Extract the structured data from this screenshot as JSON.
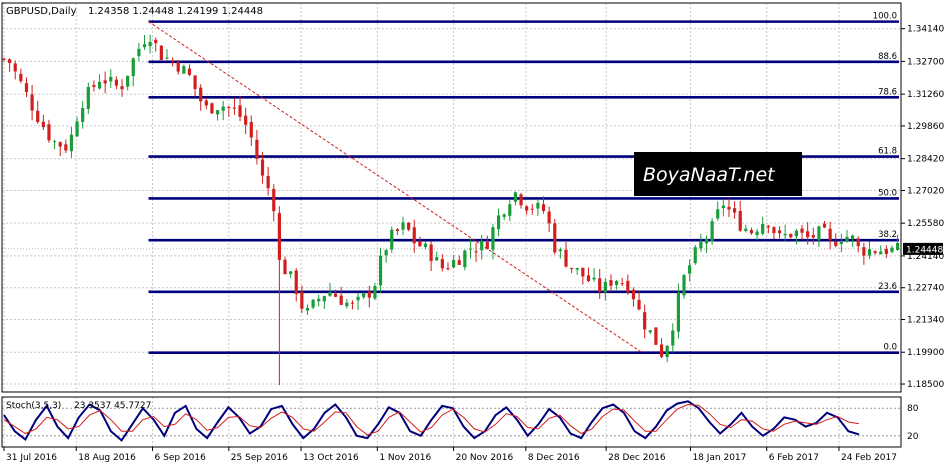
{
  "header": {
    "symbol": "GBPUSD,Daily",
    "ohlc": "1.24358 1.24448 1.24199 1.24448"
  },
  "price_tag": "1.24448",
  "watermark": "BoyaNaaT.net",
  "osc_header": {
    "name": "Stoch(3,5,3)",
    "values": "23.3537 45.7727"
  },
  "colors": {
    "bull": "#1a9c3a",
    "bear": "#d11f1f",
    "fib": "#00007d",
    "trend": "#d11f1f",
    "grid": "#c8c8c8",
    "osc_main": "#00007d",
    "osc_signal": "#d11f1f",
    "tag_bg": "#000000",
    "logo_bg": "#000000"
  },
  "chart_data": [
    {
      "type": "candlestick",
      "title": "GBPUSD,Daily",
      "ylim": [
        1.1815,
        1.3527
      ],
      "y_ticks": [
        "1.34140",
        "1.32700",
        "1.31260",
        "1.29860",
        "1.28420",
        "1.27020",
        "1.25580",
        "1.24140",
        "1.22740",
        "1.21340",
        "1.19900",
        "1.18500"
      ],
      "x_ticks": [
        "31 Jul 2016",
        "18 Aug 2016",
        "6 Sep 2016",
        "25 Sep 2016",
        "13 Oct 2016",
        "1 Nov 2016",
        "20 Nov 2016",
        "8 Dec 2016",
        "28 Dec 2016",
        "18 Jan 2017",
        "6 Feb 2017",
        "24 Feb 2017"
      ],
      "grid": true,
      "fibonacci": [
        {
          "label": "100.0",
          "price": 1.3445
        },
        {
          "label": "88.6",
          "price": 1.3268
        },
        {
          "label": "78.6",
          "price": 1.3112
        },
        {
          "label": "61.8",
          "price": 1.2851
        },
        {
          "label": "50.0",
          "price": 1.2667
        },
        {
          "label": "38.2",
          "price": 1.2483
        },
        {
          "label": "23.6",
          "price": 1.2256
        },
        {
          "label": "0.0",
          "price": 1.1988
        }
      ],
      "trendline": {
        "from_date": "5 Sep 2016",
        "from_price": 1.3445,
        "to_date": "6 Jan 2017",
        "to_price": 1.1988
      },
      "keypoints": [
        [
          "2016-08-01",
          1.328
        ],
        [
          "2016-08-04",
          1.318
        ],
        [
          "2016-08-08",
          1.304
        ],
        [
          "2016-08-12",
          1.292
        ],
        [
          "2016-08-16",
          1.289
        ],
        [
          "2016-08-19",
          1.308
        ],
        [
          "2016-08-24",
          1.32
        ],
        [
          "2016-08-29",
          1.315
        ],
        [
          "2016-09-02",
          1.331
        ],
        [
          "2016-09-05",
          1.34
        ],
        [
          "2016-09-08",
          1.33
        ],
        [
          "2016-09-12",
          1.326
        ],
        [
          "2016-09-15",
          1.321
        ],
        [
          "2016-09-19",
          1.306
        ],
        [
          "2016-09-23",
          1.308
        ],
        [
          "2016-09-27",
          1.305
        ],
        [
          "2016-09-30",
          1.297
        ],
        [
          "2016-10-04",
          1.272
        ],
        [
          "2016-10-06",
          1.27
        ],
        [
          "2016-10-07",
          1.24
        ],
        [
          "2016-10-10",
          1.233
        ],
        [
          "2016-10-12",
          1.226
        ],
        [
          "2016-10-14",
          1.215
        ],
        [
          "2016-10-18",
          1.224
        ],
        [
          "2016-10-20",
          1.226
        ],
        [
          "2016-10-24",
          1.221
        ],
        [
          "2016-10-26",
          1.219
        ],
        [
          "2016-10-31",
          1.227
        ],
        [
          "2016-11-02",
          1.24
        ],
        [
          "2016-11-04",
          1.249
        ],
        [
          "2016-11-08",
          1.255
        ],
        [
          "2016-11-10",
          1.248
        ],
        [
          "2016-11-14",
          1.243
        ],
        [
          "2016-11-17",
          1.236
        ],
        [
          "2016-11-21",
          1.24
        ],
        [
          "2016-11-24",
          1.245
        ],
        [
          "2016-11-28",
          1.246
        ],
        [
          "2016-12-01",
          1.258
        ],
        [
          "2016-12-05",
          1.27
        ],
        [
          "2016-12-08",
          1.264
        ],
        [
          "2016-12-13",
          1.261
        ],
        [
          "2016-12-15",
          1.246
        ],
        [
          "2016-12-19",
          1.237
        ],
        [
          "2016-12-22",
          1.233
        ],
        [
          "2016-12-27",
          1.226
        ],
        [
          "2016-12-30",
          1.232
        ],
        [
          "2017-01-03",
          1.228
        ],
        [
          "2017-01-06",
          1.213
        ],
        [
          "2017-01-09",
          1.205
        ],
        [
          "2017-01-11",
          1.198
        ],
        [
          "2017-01-13",
          1.207
        ],
        [
          "2017-01-16",
          1.23
        ],
        [
          "2017-01-18",
          1.238
        ],
        [
          "2017-01-20",
          1.245
        ],
        [
          "2017-01-23",
          1.252
        ],
        [
          "2017-01-26",
          1.265
        ],
        [
          "2017-01-30",
          1.256
        ],
        [
          "2017-02-02",
          1.252
        ],
        [
          "2017-02-06",
          1.258
        ],
        [
          "2017-02-09",
          1.249
        ],
        [
          "2017-02-13",
          1.252
        ],
        [
          "2017-02-16",
          1.249
        ],
        [
          "2017-02-20",
          1.252
        ],
        [
          "2017-02-22",
          1.246
        ],
        [
          "2017-02-24",
          1.25
        ],
        [
          "2017-02-27",
          1.25
        ],
        [
          "2017-03-01",
          1.244
        ]
      ]
    },
    {
      "type": "line",
      "title": "Stoch(3,5,3)",
      "ylim": [
        0,
        100
      ],
      "y_ticks": [
        "80",
        "20"
      ],
      "series": [
        {
          "values": [
            65,
            30,
            12,
            55,
            85,
            40,
            15,
            60,
            88,
            75,
            30,
            10,
            45,
            80,
            55,
            20,
            70,
            85,
            35,
            15,
            50,
            82,
            60,
            25,
            40,
            78,
            85,
            45,
            15,
            35,
            70,
            88,
            60,
            20,
            15,
            45,
            82,
            70,
            30,
            20,
            55,
            85,
            80,
            40,
            15,
            30,
            65,
            82,
            55,
            20,
            45,
            78,
            60,
            25,
            15,
            50,
            80,
            88,
            70,
            30,
            15,
            40,
            75,
            90,
            95,
            80,
            50,
            25,
            45,
            70,
            40,
            20,
            35,
            60,
            55,
            40,
            48,
            70,
            60,
            30,
            23
          ]
        },
        {
          "values": [
            55,
            40,
            25,
            35,
            60,
            55,
            35,
            40,
            65,
            75,
            55,
            30,
            30,
            55,
            62,
            40,
            45,
            68,
            55,
            32,
            38,
            60,
            62,
            42,
            38,
            58,
            72,
            60,
            35,
            30,
            50,
            72,
            70,
            40,
            22,
            30,
            60,
            72,
            50,
            28,
            38,
            65,
            78,
            60,
            35,
            28,
            45,
            68,
            62,
            38,
            35,
            58,
            65,
            42,
            25,
            35,
            62,
            78,
            76,
            52,
            30,
            30,
            55,
            78,
            88,
            86,
            68,
            45,
            38,
            55,
            52,
            35,
            30,
            45,
            52,
            48,
            45,
            55,
            62,
            50,
            46
          ]
        }
      ]
    }
  ]
}
